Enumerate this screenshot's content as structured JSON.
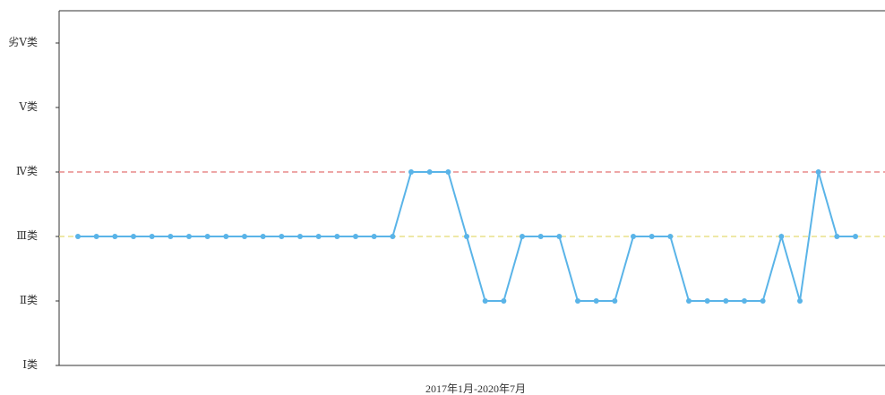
{
  "chart_data": {
    "type": "line",
    "x_label": "2017年1月-2020年7月",
    "categories": [
      null,
      null,
      null,
      null,
      null,
      null,
      null,
      null,
      null,
      null,
      null,
      null,
      null,
      null,
      null,
      null,
      null,
      null,
      null,
      null,
      null,
      null,
      null,
      null,
      null,
      null,
      null,
      null,
      null,
      null,
      null,
      null,
      null,
      null,
      null,
      null,
      null,
      null,
      null,
      null,
      null,
      null,
      null
    ],
    "series": [
      {
        "color": "#5ab4e8",
        "values": [
          3,
          3,
          3,
          3,
          3,
          3,
          3,
          3,
          3,
          3,
          3,
          3,
          3,
          3,
          3,
          3,
          3,
          3,
          4,
          4,
          4,
          3,
          2,
          2,
          3,
          3,
          3,
          2,
          2,
          2,
          3,
          3,
          3,
          2,
          2,
          2,
          2,
          2,
          3,
          2,
          4,
          3,
          3
        ]
      }
    ],
    "reference_lines": [
      {
        "value": 4,
        "color": "#e88a8a"
      },
      {
        "value": 3,
        "color": "#e8e08a"
      }
    ],
    "ylim": [
      1,
      6.5
    ],
    "yticks": [
      {
        "value": 1,
        "label": "Ⅰ类"
      },
      {
        "value": 2,
        "label": "Ⅱ类"
      },
      {
        "value": 3,
        "label": "Ⅲ类"
      },
      {
        "value": 4,
        "label": "Ⅳ类"
      },
      {
        "value": 5,
        "label": "Ⅴ类"
      },
      {
        "value": 6,
        "label": "劣Ⅴ类"
      }
    ]
  }
}
